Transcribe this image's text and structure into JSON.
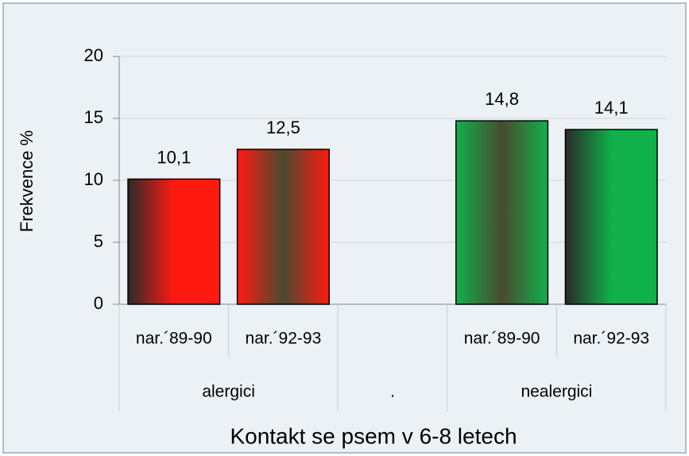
{
  "chart_data": {
    "type": "bar",
    "x_title": "Kontakt se psem  v 6-8  letech",
    "y_title": "Frekvence %",
    "categories": [
      "nar.´89-90",
      "nar.´92-93",
      null,
      "nar.´89-90",
      "nar.´92-93"
    ],
    "groups": [
      "alergici",
      ".",
      "nealergici"
    ],
    "group_sizes": [
      2,
      1,
      2
    ],
    "values": [
      10.1,
      12.5,
      null,
      14.8,
      14.1
    ],
    "value_labels": [
      "10,1",
      "12,5",
      null,
      "14,8",
      "14,1"
    ],
    "colors": [
      "#ff1a10",
      "#ff1a10",
      null,
      "#10b04a",
      "#10b04a"
    ],
    "ylim": [
      0,
      20
    ],
    "yticks": [
      0,
      5,
      10,
      15,
      20
    ],
    "grid": true
  }
}
